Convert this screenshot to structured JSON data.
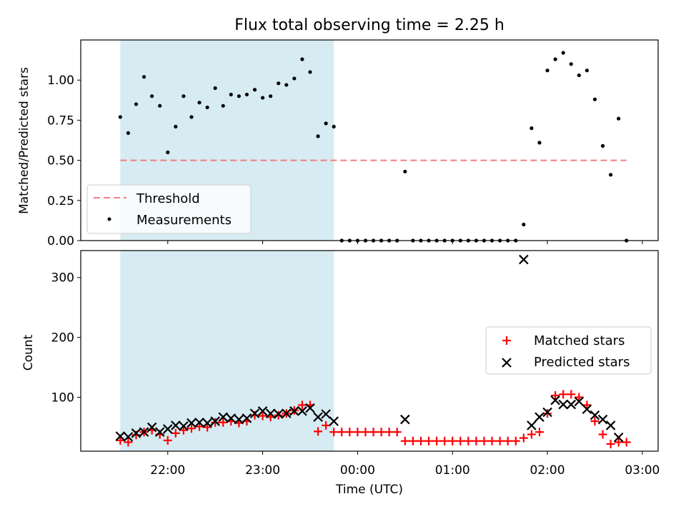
{
  "chart_data": [
    {
      "type": "scatter",
      "title": "Flux total observing time = 2.25 h",
      "xlabel": "",
      "ylabel": "Matched/Predicted stars",
      "ylim": [
        0,
        1.25
      ],
      "yticks": [
        "0.00",
        "0.25",
        "0.50",
        "0.75",
        "1.00"
      ],
      "yticks_values": [
        0,
        0.25,
        0.5,
        0.75,
        1.0
      ],
      "shaded_span": [
        "21:30",
        "23:45"
      ],
      "threshold": {
        "name": "Threshold",
        "value": 0.5,
        "x_range": [
          "21:30",
          "02:50"
        ],
        "color": "#f08080"
      },
      "legend_placement": "lower-left",
      "series": [
        {
          "name": "Measurements",
          "color": "#000000",
          "points": [
            [
              "21:30",
              0.77
            ],
            [
              "21:35",
              0.67
            ],
            [
              "21:40",
              0.85
            ],
            [
              "21:45",
              1.02
            ],
            [
              "21:50",
              0.9
            ],
            [
              "21:55",
              0.84
            ],
            [
              "22:00",
              0.55
            ],
            [
              "22:05",
              0.71
            ],
            [
              "22:10",
              0.9
            ],
            [
              "22:15",
              0.77
            ],
            [
              "22:20",
              0.86
            ],
            [
              "22:25",
              0.83
            ],
            [
              "22:30",
              0.95
            ],
            [
              "22:35",
              0.84
            ],
            [
              "22:40",
              0.91
            ],
            [
              "22:45",
              0.9
            ],
            [
              "22:50",
              0.91
            ],
            [
              "22:55",
              0.94
            ],
            [
              "23:00",
              0.89
            ],
            [
              "23:05",
              0.9
            ],
            [
              "23:10",
              0.98
            ],
            [
              "23:15",
              0.97
            ],
            [
              "23:20",
              1.01
            ],
            [
              "23:25",
              1.13
            ],
            [
              "23:30",
              1.05
            ],
            [
              "23:35",
              0.65
            ],
            [
              "23:40",
              0.73
            ],
            [
              "23:45",
              0.71
            ],
            [
              "23:50",
              0.0
            ],
            [
              "23:55",
              0.0
            ],
            [
              "00:00",
              0.0
            ],
            [
              "00:05",
              0.0
            ],
            [
              "00:10",
              0.0
            ],
            [
              "00:15",
              0.0
            ],
            [
              "00:20",
              0.0
            ],
            [
              "00:25",
              0.0
            ],
            [
              "00:30",
              0.43
            ],
            [
              "00:35",
              0.0
            ],
            [
              "00:40",
              0.0
            ],
            [
              "00:45",
              0.0
            ],
            [
              "00:50",
              0.0
            ],
            [
              "00:55",
              0.0
            ],
            [
              "01:00",
              0.0
            ],
            [
              "01:05",
              0.0
            ],
            [
              "01:10",
              0.0
            ],
            [
              "01:15",
              0.0
            ],
            [
              "01:20",
              0.0
            ],
            [
              "01:25",
              0.0
            ],
            [
              "01:30",
              0.0
            ],
            [
              "01:35",
              0.0
            ],
            [
              "01:40",
              0.0
            ],
            [
              "01:45",
              0.1
            ],
            [
              "01:50",
              0.7
            ],
            [
              "01:55",
              0.61
            ],
            [
              "02:00",
              1.06
            ],
            [
              "02:05",
              1.13
            ],
            [
              "02:10",
              1.17
            ],
            [
              "02:15",
              1.1
            ],
            [
              "02:20",
              1.03
            ],
            [
              "02:25",
              1.06
            ],
            [
              "02:30",
              0.88
            ],
            [
              "02:35",
              0.59
            ],
            [
              "02:40",
              0.41
            ],
            [
              "02:45",
              0.76
            ],
            [
              "02:50",
              0.0
            ]
          ]
        }
      ]
    },
    {
      "type": "scatter",
      "title": "",
      "xlabel": "Time (UTC)",
      "ylabel": "Count",
      "ylim": [
        10,
        345
      ],
      "yticks": [
        "100",
        "200",
        "300"
      ],
      "yticks_values": [
        100,
        200,
        300
      ],
      "xlim": [
        "21:05",
        "03:10"
      ],
      "xticks": [
        "22:00",
        "23:00",
        "00:00",
        "01:00",
        "02:00",
        "03:00"
      ],
      "shaded_span": [
        "21:30",
        "23:45"
      ],
      "legend_placement": "center-right",
      "series": [
        {
          "name": "Matched stars",
          "color": "#ff0000",
          "marker": "+",
          "points": [
            [
              "21:30",
              28
            ],
            [
              "21:35",
              25
            ],
            [
              "21:40",
              37
            ],
            [
              "21:45",
              42
            ],
            [
              "21:50",
              45
            ],
            [
              "21:55",
              38
            ],
            [
              "22:00",
              28
            ],
            [
              "22:05",
              40
            ],
            [
              "22:10",
              45
            ],
            [
              "22:15",
              48
            ],
            [
              "22:20",
              51
            ],
            [
              "22:25",
              50
            ],
            [
              "22:30",
              58
            ],
            [
              "22:35",
              58
            ],
            [
              "22:40",
              60
            ],
            [
              "22:45",
              57
            ],
            [
              "22:50",
              60
            ],
            [
              "22:55",
              70
            ],
            [
              "23:00",
              69
            ],
            [
              "23:05",
              67
            ],
            [
              "23:10",
              70
            ],
            [
              "23:15",
              73
            ],
            [
              "23:20",
              78
            ],
            [
              "23:25",
              87
            ],
            [
              "23:30",
              87
            ],
            [
              "23:35",
              43
            ],
            [
              "23:40",
              53
            ],
            [
              "23:45",
              42
            ],
            [
              "23:50",
              42
            ],
            [
              "23:55",
              42
            ],
            [
              "00:00",
              42
            ],
            [
              "00:05",
              42
            ],
            [
              "00:10",
              42
            ],
            [
              "00:15",
              42
            ],
            [
              "00:20",
              42
            ],
            [
              "00:25",
              42
            ],
            [
              "00:30",
              27
            ],
            [
              "00:35",
              27
            ],
            [
              "00:40",
              27
            ],
            [
              "00:45",
              27
            ],
            [
              "00:50",
              27
            ],
            [
              "00:55",
              27
            ],
            [
              "01:00",
              27
            ],
            [
              "01:05",
              27
            ],
            [
              "01:10",
              27
            ],
            [
              "01:15",
              27
            ],
            [
              "01:20",
              27
            ],
            [
              "01:25",
              27
            ],
            [
              "01:30",
              27
            ],
            [
              "01:35",
              27
            ],
            [
              "01:40",
              27
            ],
            [
              "01:45",
              32
            ],
            [
              "01:50",
              38
            ],
            [
              "01:55",
              42
            ],
            [
              "02:00",
              73
            ],
            [
              "02:05",
              103
            ],
            [
              "02:10",
              105
            ],
            [
              "02:15",
              105
            ],
            [
              "02:20",
              100
            ],
            [
              "02:25",
              87
            ],
            [
              "02:30",
              60
            ],
            [
              "02:35",
              38
            ],
            [
              "02:40",
              22
            ],
            [
              "02:45",
              25
            ],
            [
              "02:50",
              25
            ]
          ]
        },
        {
          "name": "Predicted stars",
          "color": "#000000",
          "marker": "x",
          "points": [
            [
              "21:30",
              35
            ],
            [
              "21:35",
              34
            ],
            [
              "21:40",
              40
            ],
            [
              "21:45",
              42
            ],
            [
              "21:50",
              50
            ],
            [
              "21:55",
              42
            ],
            [
              "22:00",
              47
            ],
            [
              "22:05",
              53
            ],
            [
              "22:10",
              52
            ],
            [
              "22:15",
              57
            ],
            [
              "22:20",
              58
            ],
            [
              "22:25",
              57
            ],
            [
              "22:30",
              60
            ],
            [
              "22:35",
              67
            ],
            [
              "22:40",
              65
            ],
            [
              "22:45",
              63
            ],
            [
              "22:50",
              65
            ],
            [
              "22:55",
              73
            ],
            [
              "23:00",
              77
            ],
            [
              "23:05",
              73
            ],
            [
              "23:10",
              72
            ],
            [
              "23:15",
              73
            ],
            [
              "23:20",
              77
            ],
            [
              "23:25",
              77
            ],
            [
              "23:30",
              82
            ],
            [
              "23:35",
              67
            ],
            [
              "23:40",
              72
            ],
            [
              "23:45",
              60
            ],
            [
              "00:30",
              63
            ],
            [
              "01:45",
              330
            ],
            [
              "01:50",
              53
            ],
            [
              "01:55",
              67
            ],
            [
              "02:00",
              75
            ],
            [
              "02:05",
              95
            ],
            [
              "02:10",
              88
            ],
            [
              "02:15",
              88
            ],
            [
              "02:20",
              93
            ],
            [
              "02:25",
              80
            ],
            [
              "02:30",
              70
            ],
            [
              "02:35",
              63
            ],
            [
              "02:40",
              53
            ],
            [
              "02:45",
              33
            ]
          ]
        }
      ]
    }
  ]
}
